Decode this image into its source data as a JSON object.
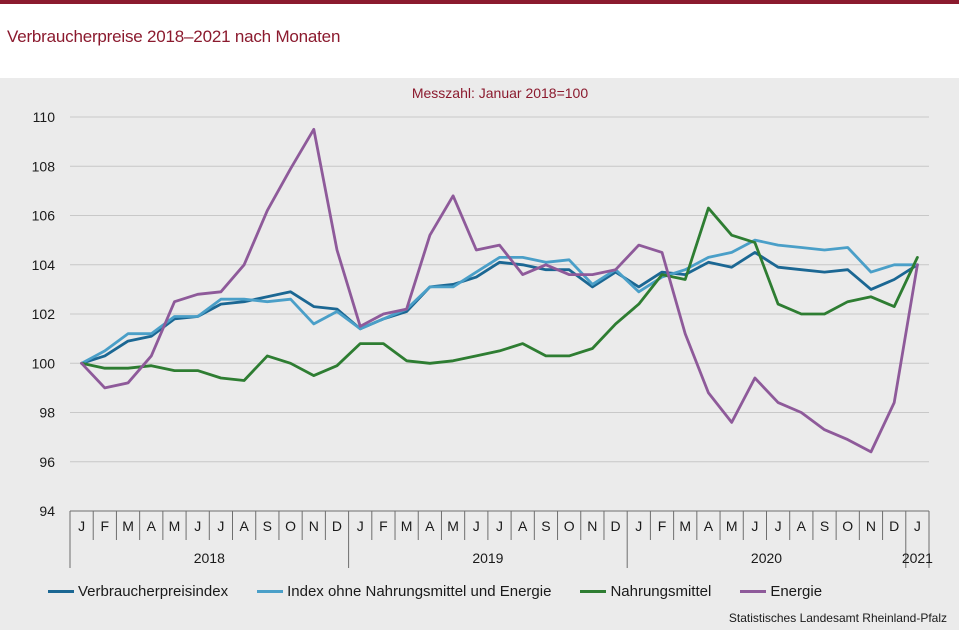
{
  "title": "Verbraucherpreise 2018–2021 nach Monaten",
  "source": "Statistisches Landesamt Rheinland-Pfalz",
  "colors": {
    "brand": "#8b1a2e",
    "background": "#ebebeb",
    "grid": "#c8c8c8"
  },
  "chart_data": {
    "type": "line",
    "subtitle": "Messzahl: Januar 2018=100",
    "ylim": [
      94,
      110
    ],
    "yticks": [
      94,
      96,
      98,
      100,
      102,
      104,
      106,
      108,
      110
    ],
    "grid": true,
    "legend_position": "bottom",
    "x": [
      "J",
      "F",
      "M",
      "A",
      "M",
      "J",
      "J",
      "A",
      "S",
      "O",
      "N",
      "D",
      "J",
      "F",
      "M",
      "A",
      "M",
      "J",
      "J",
      "A",
      "S",
      "O",
      "N",
      "D",
      "J",
      "F",
      "M",
      "A",
      "M",
      "J",
      "J",
      "A",
      "S",
      "O",
      "N",
      "D",
      "J"
    ],
    "year_labels": [
      "2018",
      "2019",
      "2020",
      "2021"
    ],
    "series": [
      {
        "name": "Verbraucherpreisindex",
        "color": "#1b6793",
        "values": [
          100.0,
          100.3,
          100.9,
          101.1,
          101.8,
          101.9,
          102.4,
          102.5,
          102.7,
          102.9,
          102.3,
          102.2,
          101.4,
          101.8,
          102.1,
          103.1,
          103.2,
          103.5,
          104.1,
          104.0,
          103.8,
          103.8,
          103.1,
          103.7,
          103.1,
          103.7,
          103.6,
          104.1,
          103.9,
          104.5,
          103.9,
          103.8,
          103.7,
          103.8,
          103.0,
          103.4,
          104.0
        ]
      },
      {
        "name": "Index ohne Nahrungsmittel und Energie",
        "color": "#4a9fc8",
        "values": [
          100.0,
          100.5,
          101.2,
          101.2,
          101.9,
          101.9,
          102.6,
          102.6,
          102.5,
          102.6,
          101.6,
          102.1,
          101.4,
          101.8,
          102.2,
          103.1,
          103.1,
          103.7,
          104.3,
          104.3,
          104.1,
          104.2,
          103.2,
          103.8,
          102.9,
          103.5,
          103.8,
          104.3,
          104.5,
          105.0,
          104.8,
          104.7,
          104.6,
          104.7,
          103.7,
          104.0,
          104.0
        ]
      },
      {
        "name": "Nahrungsmittel",
        "color": "#2e7d32",
        "values": [
          100.0,
          99.8,
          99.8,
          99.9,
          99.7,
          99.7,
          99.4,
          99.3,
          100.3,
          100.0,
          99.5,
          99.9,
          100.8,
          100.8,
          100.1,
          100.0,
          100.1,
          100.3,
          100.5,
          100.8,
          100.3,
          100.3,
          100.6,
          101.6,
          102.4,
          103.6,
          103.4,
          106.3,
          105.2,
          104.9,
          102.4,
          102.0,
          102.0,
          102.5,
          102.7,
          102.3,
          104.3
        ]
      },
      {
        "name": "Energie",
        "color": "#8e5a9a",
        "values": [
          100.0,
          99.0,
          99.2,
          100.3,
          102.5,
          102.8,
          102.9,
          104.0,
          106.2,
          107.9,
          109.5,
          104.6,
          101.5,
          102.0,
          102.2,
          105.2,
          106.8,
          104.6,
          104.8,
          103.6,
          104.0,
          103.6,
          103.6,
          103.8,
          104.8,
          104.5,
          101.2,
          98.8,
          97.6,
          99.4,
          98.4,
          98.0,
          97.3,
          96.9,
          96.4,
          98.4,
          104.0
        ]
      }
    ]
  }
}
